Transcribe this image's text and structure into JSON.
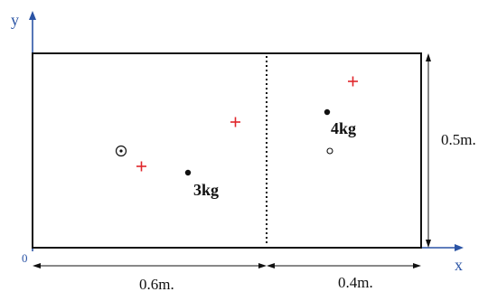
{
  "axes": {
    "y_label": "y",
    "x_label": "x",
    "origin_label": "0",
    "color": "#2b54a5"
  },
  "dimensions": {
    "left_width_label": "0.6m.",
    "right_width_label": "0.4m.",
    "height_label": "0.5m."
  },
  "masses": {
    "left_label": "3kg",
    "right_label": "4kg"
  },
  "colors": {
    "outline": "#111111",
    "marker_red": "#e0262b",
    "text": "#111111"
  }
}
